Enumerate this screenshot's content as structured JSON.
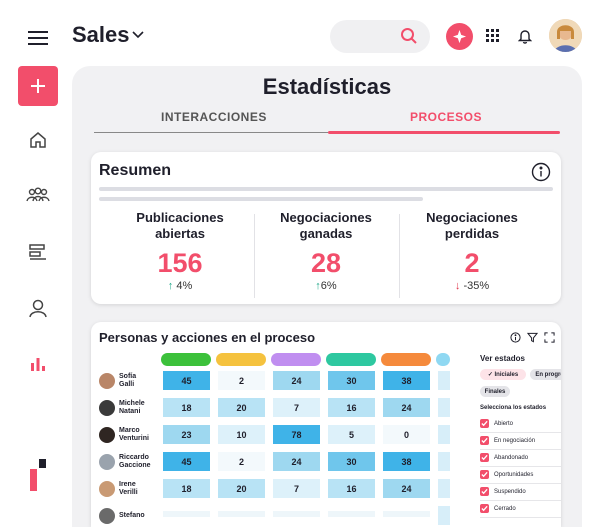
{
  "app": {
    "title": "Sales"
  },
  "panel": {
    "title": "Estadísticas",
    "tabs": [
      {
        "label": "INTERACCIONES",
        "active": false
      },
      {
        "label": "PROCESOS",
        "active": true
      }
    ]
  },
  "summary": {
    "title": "Resumen",
    "stats": [
      {
        "label_line1": "Publicaciones",
        "label_line2": "abiertas",
        "value": "156",
        "change": "4%",
        "direction": "up"
      },
      {
        "label_line1": "Negociaciones",
        "label_line2": "ganadas",
        "value": "28",
        "change": "6%",
        "direction": "up"
      },
      {
        "label_line1": "Negociaciones",
        "label_line2": "perdidas",
        "value": "2",
        "change": "-35%",
        "direction": "down"
      }
    ]
  },
  "process": {
    "title": "Personas y acciones en el proceso",
    "stage_colors": [
      "#3cc13b",
      "#f5c23e",
      "#c08ef0",
      "#2ec8a0",
      "#f58a3c",
      "#8fd8f2"
    ],
    "rows": [
      {
        "name_line1": "Sofía",
        "name_line2": "Galli",
        "values": [
          "45",
          "2",
          "24",
          "30",
          "38"
        ]
      },
      {
        "name_line1": "Michele",
        "name_line2": "Natani",
        "values": [
          "18",
          "20",
          "7",
          "16",
          "24"
        ]
      },
      {
        "name_line1": "Marco",
        "name_line2": "Venturini",
        "values": [
          "23",
          "10",
          "78",
          "5",
          "0"
        ]
      },
      {
        "name_line1": "Riccardo",
        "name_line2": "Gaccione",
        "values": [
          "45",
          "2",
          "24",
          "30",
          "38"
        ]
      },
      {
        "name_line1": "Irene",
        "name_line2": "Verilli",
        "values": [
          "18",
          "20",
          "7",
          "16",
          "24"
        ]
      },
      {
        "name_line1": "Stefano",
        "name_line2": "",
        "values": []
      }
    ],
    "filters": {
      "title": "Ver estados",
      "pills": [
        {
          "label": "✓ Iniciales",
          "active": true
        },
        {
          "label": "En progreso",
          "active": false
        },
        {
          "label": "Finales",
          "active": false
        }
      ],
      "select_title": "Selecciona los estados",
      "states": [
        "Abierto",
        "En negociación",
        "Abandonado",
        "Oportunidades",
        "Suspendido",
        "Cerrado"
      ]
    }
  },
  "colors": {
    "accent": "#f24e6b",
    "panel_bg": "#f1f1f3"
  }
}
